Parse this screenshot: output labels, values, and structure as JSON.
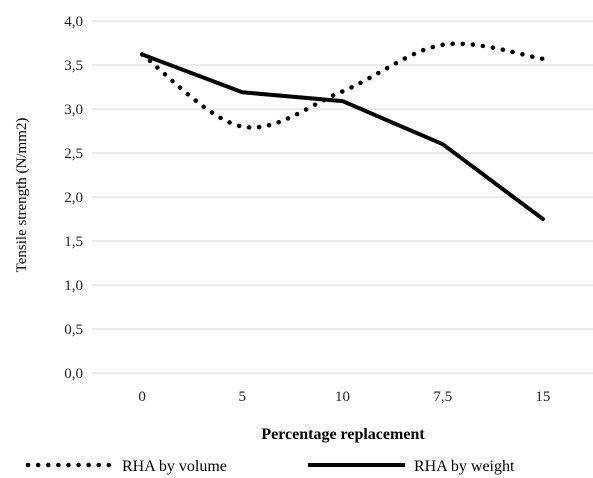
{
  "chart_data": {
    "type": "line",
    "categories": [
      "0",
      "5",
      "10",
      "7,5",
      "15"
    ],
    "xlabel": "Percentage replacement",
    "ylabel": "Tensile strength  (N/mm2)",
    "ylim": [
      0,
      4
    ],
    "yticks": [
      "0,0",
      "0,5",
      "1,0",
      "1,5",
      "2,0",
      "2,5",
      "3,0",
      "3,5",
      "4,0"
    ],
    "grid": true,
    "legend_position": "bottom",
    "series": [
      {
        "name": "RHA by volume",
        "values": [
          3.62,
          2.8,
          3.2,
          3.73,
          3.57
        ],
        "style": "dotted",
        "color": "#000000"
      },
      {
        "name": "RHA by weight",
        "values": [
          3.62,
          3.19,
          3.09,
          2.6,
          1.75
        ],
        "style": "solid",
        "color": "#000000"
      }
    ]
  },
  "colors": {
    "grid": "#d9d9d9",
    "series": "#000000"
  }
}
